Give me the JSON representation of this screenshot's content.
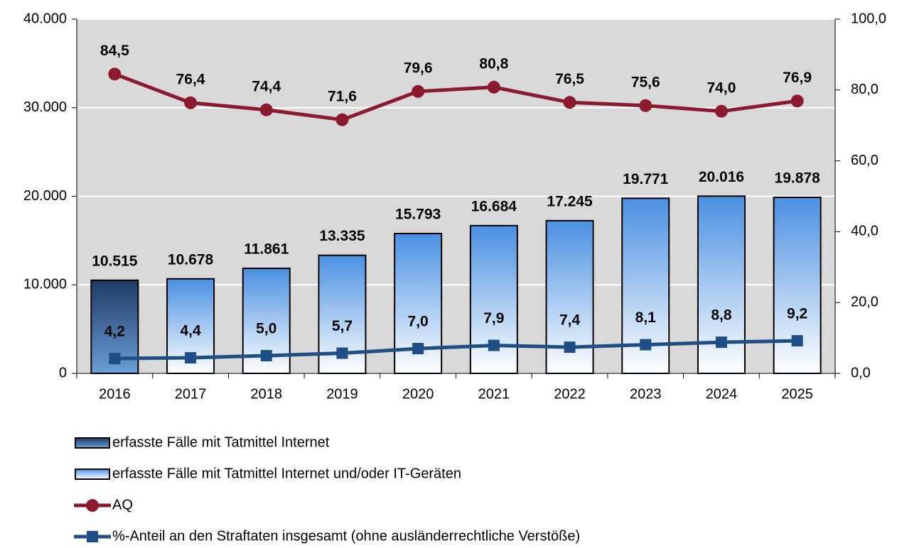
{
  "chart_data": {
    "type": "bar",
    "categories": [
      "2016",
      "2017",
      "2018",
      "2019",
      "2020",
      "2021",
      "2022",
      "2023",
      "2024",
      "2025"
    ],
    "series": [
      {
        "name": "erfasste Fälle mit Tatmittel Internet",
        "type": "bar",
        "color": "#1f3a64",
        "values": [
          10515,
          null,
          null,
          null,
          null,
          null,
          null,
          null,
          null,
          null
        ],
        "value_labels": [
          "10.515",
          null,
          null,
          null,
          null,
          null,
          null,
          null,
          null,
          null
        ]
      },
      {
        "name": "erfasste Fälle mit Tatmittel Internet und/oder IT-Geräten",
        "type": "bar",
        "color": "#4a90e2",
        "values": [
          null,
          10678,
          11861,
          13335,
          15793,
          16684,
          17245,
          19771,
          20016,
          19878
        ],
        "value_labels": [
          null,
          "10.678",
          "11.861",
          "13.335",
          "15.793",
          "16.684",
          "17.245",
          "19.771",
          "20.016",
          "19.878"
        ]
      },
      {
        "name": "AQ",
        "type": "line",
        "axis": "y2",
        "marker": "circle",
        "color": "#8b1a2e",
        "values": [
          84.5,
          76.4,
          74.4,
          71.6,
          79.6,
          80.8,
          76.5,
          75.6,
          74.0,
          76.9
        ],
        "value_labels": [
          "84,5",
          "76,4",
          "74,4",
          "71,6",
          "79,6",
          "80,8",
          "76,5",
          "75,6",
          "74,0",
          "76,9"
        ]
      },
      {
        "name": "%-Anteil an den Straftaten insgesamt (ohne ausländerrechtliche Verstöße)",
        "type": "line",
        "axis": "y2",
        "marker": "square",
        "color": "#1f4e86",
        "values": [
          4.2,
          4.4,
          5.0,
          5.7,
          7.0,
          7.9,
          7.4,
          8.1,
          8.8,
          9.2
        ],
        "value_labels": [
          "4,2",
          "4,4",
          "5,0",
          "5,7",
          "7,0",
          "7,9",
          "7,4",
          "8,1",
          "8,8",
          "9,2"
        ]
      }
    ],
    "ylim": [
      0,
      40000
    ],
    "yticks": [
      0,
      {
        "value": 10000,
        "label": "10.000"
      },
      {
        "value": 20000,
        "label": "20.000"
      },
      {
        "value": 30000,
        "label": "30.000"
      },
      {
        "value": 40000,
        "label": "40.000"
      }
    ],
    "y2lim": [
      0,
      100
    ],
    "y2ticks": [
      {
        "value": 0,
        "label": "0,0"
      },
      {
        "value": 20,
        "label": "20,0"
      },
      {
        "value": 40,
        "label": "40,0"
      },
      {
        "value": 60,
        "label": "60,0"
      },
      {
        "value": 80,
        "label": "80,0"
      },
      {
        "value": 100,
        "label": "100,0"
      }
    ],
    "grid": true,
    "plot_background": "#d9d9d9",
    "legend": "bottom"
  }
}
